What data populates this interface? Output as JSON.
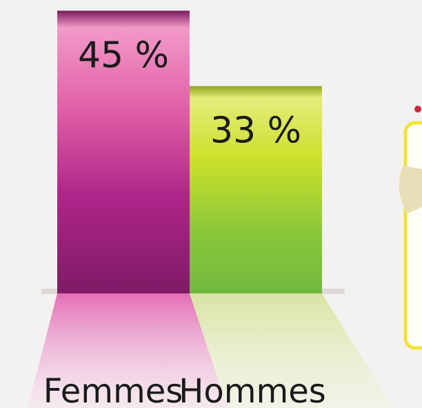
{
  "chart_data": {
    "type": "bar",
    "categories": [
      "Femmes",
      "Hommes"
    ],
    "values": [
      45,
      33
    ],
    "value_labels": [
      "45 %",
      "33 %"
    ],
    "colors": [
      "#b0258a",
      "#9fd02e"
    ]
  }
}
